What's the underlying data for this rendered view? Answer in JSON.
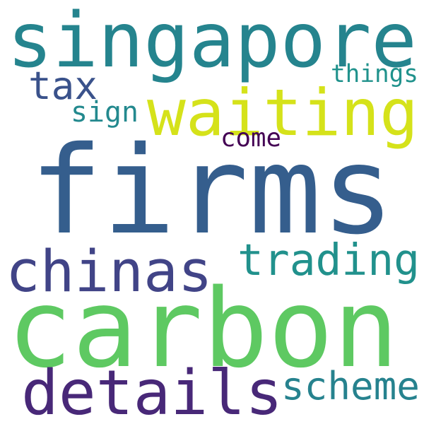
{
  "words": [
    {
      "text": "singapore",
      "color": "#25848e"
    },
    {
      "text": "waiting",
      "color": "#d5e21a"
    },
    {
      "text": "tax",
      "color": "#3a528b"
    },
    {
      "text": "things",
      "color": "#20928c"
    },
    {
      "text": "sign",
      "color": "#23898e"
    },
    {
      "text": "come",
      "color": "#440154"
    },
    {
      "text": "firms",
      "color": "#355e8d"
    },
    {
      "text": "chinas",
      "color": "#414487"
    },
    {
      "text": "trading",
      "color": "#21918c"
    },
    {
      "text": "carbon",
      "color": "#5ec962"
    },
    {
      "text": "details",
      "color": "#482878"
    },
    {
      "text": "scheme",
      "color": "#26828e"
    }
  ]
}
